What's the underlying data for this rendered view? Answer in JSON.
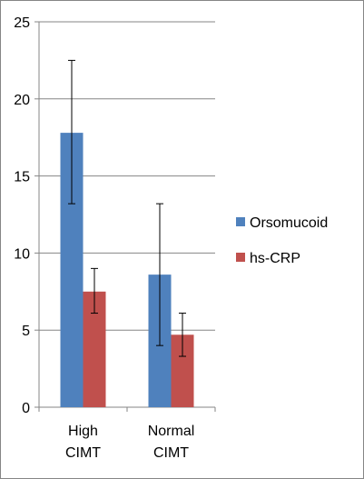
{
  "chart_data": {
    "type": "bar",
    "title": "",
    "xlabel": "",
    "ylabel": "",
    "ylim": [
      0,
      25
    ],
    "yticks": [
      0,
      5,
      10,
      15,
      20,
      25
    ],
    "grid": true,
    "legend_position": "right",
    "categories": [
      [
        "High",
        "CIMT"
      ],
      [
        "Normal",
        "CIMT"
      ]
    ],
    "series": [
      {
        "name": "Orsomucoid",
        "color": "#4F81BD",
        "values": [
          17.8,
          8.6
        ],
        "error_low": [
          13.2,
          4.0
        ],
        "error_high": [
          22.5,
          13.2
        ]
      },
      {
        "name": "hs-CRP",
        "color": "#C0504D",
        "values": [
          7.5,
          4.7
        ],
        "error_low": [
          6.1,
          3.3
        ],
        "error_high": [
          9.0,
          6.1
        ]
      }
    ]
  }
}
